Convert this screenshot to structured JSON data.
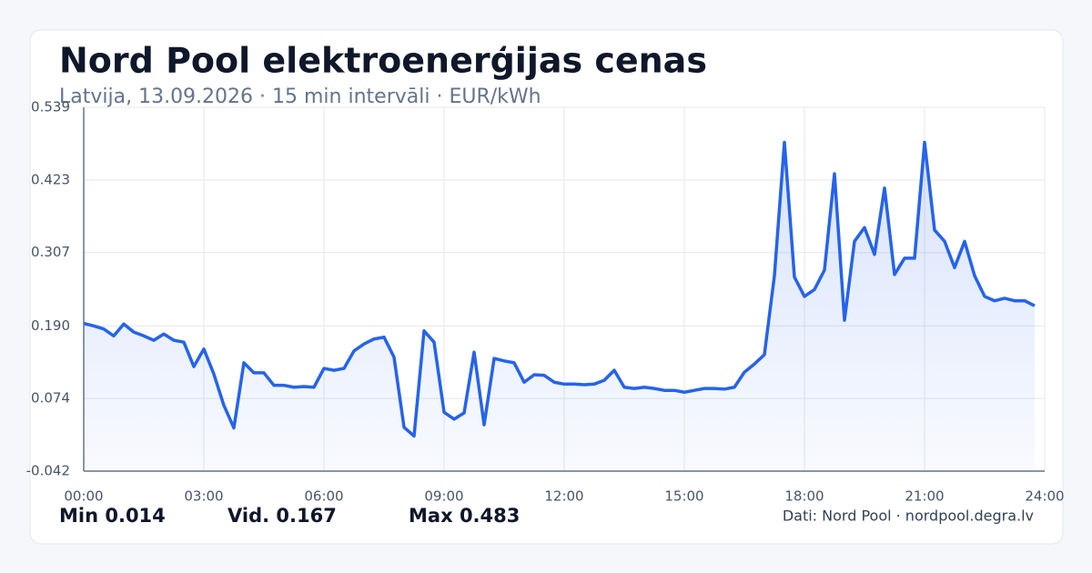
{
  "chart_data": {
    "type": "line",
    "title": "Nord Pool elektroenerģijas cenas",
    "subtitle": "Latvija, 13.09.2026 · 15 min intervāli · EUR/kWh",
    "x": [
      0,
      0.25,
      0.5,
      0.75,
      1,
      1.25,
      1.5,
      1.75,
      2,
      2.25,
      2.5,
      2.75,
      3,
      3.25,
      3.5,
      3.75,
      4,
      4.25,
      4.5,
      4.75,
      5,
      5.25,
      5.5,
      5.75,
      6,
      6.25,
      6.5,
      6.75,
      7,
      7.25,
      7.5,
      7.75,
      8,
      8.25,
      8.5,
      8.75,
      9,
      9.25,
      9.5,
      9.75,
      10,
      10.25,
      10.5,
      10.75,
      11,
      11.25,
      11.5,
      11.75,
      12,
      12.25,
      12.5,
      12.75,
      13,
      13.25,
      13.5,
      13.75,
      14,
      14.25,
      14.5,
      14.75,
      15,
      15.25,
      15.5,
      15.75,
      16,
      16.25,
      16.5,
      16.75,
      17,
      17.25,
      17.5,
      17.75,
      18,
      18.25,
      18.5,
      18.75,
      19,
      19.25,
      19.5,
      19.75,
      20,
      20.25,
      20.5,
      20.75,
      21,
      21.25,
      21.5,
      21.75,
      22,
      22.25,
      22.5,
      22.75,
      23,
      23.25,
      23.5,
      23.75
    ],
    "values": [
      0.194,
      0.19,
      0.185,
      0.174,
      0.193,
      0.18,
      0.174,
      0.167,
      0.177,
      0.167,
      0.164,
      0.125,
      0.153,
      0.113,
      0.063,
      0.027,
      0.131,
      0.115,
      0.115,
      0.095,
      0.095,
      0.092,
      0.093,
      0.092,
      0.122,
      0.119,
      0.122,
      0.15,
      0.161,
      0.169,
      0.172,
      0.14,
      0.028,
      0.014,
      0.182,
      0.164,
      0.052,
      0.041,
      0.051,
      0.148,
      0.032,
      0.138,
      0.134,
      0.131,
      0.1,
      0.112,
      0.111,
      0.1,
      0.097,
      0.097,
      0.096,
      0.097,
      0.103,
      0.119,
      0.092,
      0.09,
      0.092,
      0.09,
      0.087,
      0.087,
      0.084,
      0.087,
      0.09,
      0.09,
      0.089,
      0.092,
      0.116,
      0.129,
      0.144,
      0.27,
      0.483,
      0.268,
      0.237,
      0.248,
      0.279,
      0.433,
      0.199,
      0.325,
      0.347,
      0.304,
      0.41,
      0.272,
      0.298,
      0.298,
      0.483,
      0.343,
      0.325,
      0.283,
      0.325,
      0.27,
      0.237,
      0.23,
      0.234,
      0.23,
      0.23,
      0.222
    ],
    "color": "#2563eb",
    "xlim": [
      0,
      24
    ],
    "xticks": [
      {
        "value": 0,
        "label": "00:00"
      },
      {
        "value": 3,
        "label": "03:00"
      },
      {
        "value": 6,
        "label": "06:00"
      },
      {
        "value": 9,
        "label": "09:00"
      },
      {
        "value": 12,
        "label": "12:00"
      },
      {
        "value": 15,
        "label": "15:00"
      },
      {
        "value": 18,
        "label": "18:00"
      },
      {
        "value": 21,
        "label": "21:00"
      },
      {
        "value": 24,
        "label": "24:00"
      }
    ],
    "ylim": [
      -0.042,
      0.539
    ],
    "yticks": [
      -0.042,
      0.074,
      {
        "value": 0.19,
        "label": "0.190"
      },
      0.307,
      0.423,
      0.539
    ],
    "grid": true,
    "stats": [
      {
        "label": "Min",
        "value": 0.014
      },
      {
        "label": "Vid.",
        "value": 0.167
      },
      {
        "label": "Max",
        "value": 0.483
      }
    ],
    "source": "Dati: Nord Pool · nordpool.degra.lv"
  }
}
